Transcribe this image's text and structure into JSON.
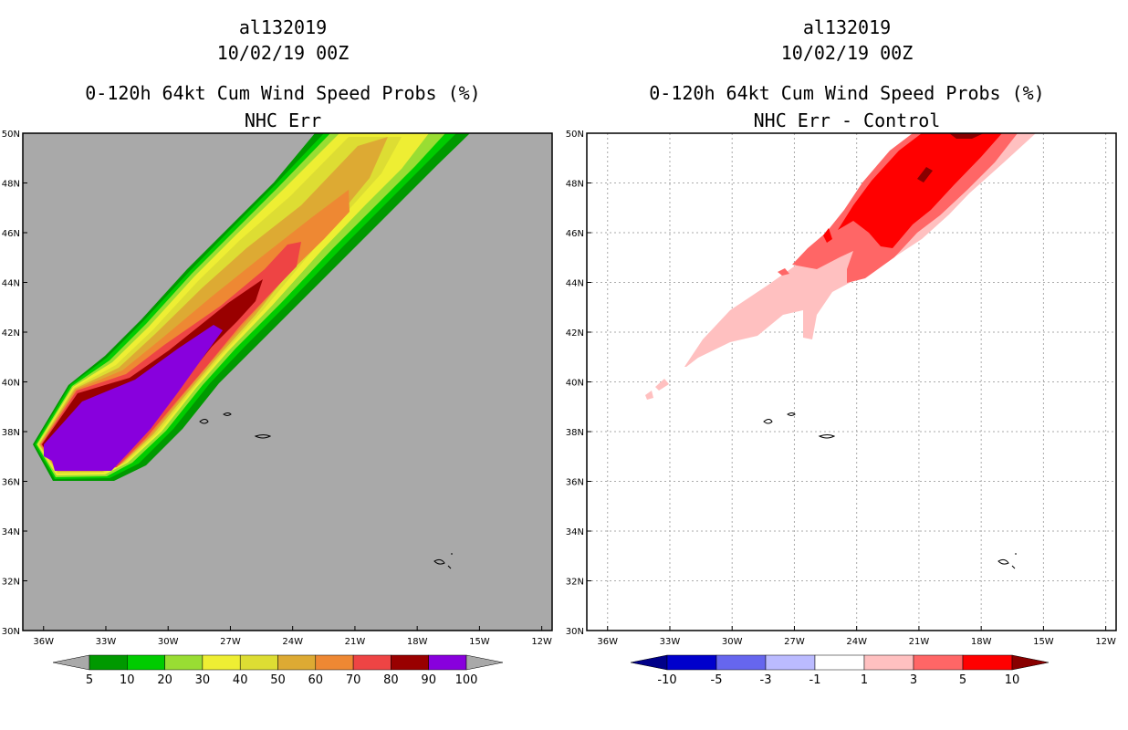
{
  "chart_data": [
    {
      "type": "heatmap",
      "storm_id": "al132019",
      "date": "10/02/19 00Z",
      "title": "0-120h 64kt Cum Wind Speed Probs (%)",
      "subtitle": "NHC Err",
      "x_ticks": [
        "36W",
        "33W",
        "30W",
        "27W",
        "24W",
        "21W",
        "18W",
        "15W",
        "12W"
      ],
      "y_ticks": [
        "50N",
        "48N",
        "46N",
        "44N",
        "42N",
        "40N",
        "38N",
        "36N",
        "34N",
        "32N",
        "30N"
      ],
      "xlim": [
        -37,
        -11.5
      ],
      "ylim": [
        30,
        50
      ],
      "grid": false,
      "background_color": "#a9a9a9",
      "colorbar": {
        "levels": [
          "5",
          "10",
          "20",
          "30",
          "40",
          "50",
          "60",
          "70",
          "80",
          "90",
          "100"
        ],
        "colors": [
          "#009900",
          "#00cc00",
          "#99dd33",
          "#eeee33",
          "#dddd33",
          "#ddaa33",
          "#ee8833",
          "#ee4444",
          "#990000",
          "#8800dd"
        ],
        "under_color": "#a9a9a9",
        "over_color": "#a9a9a9"
      }
    },
    {
      "type": "heatmap",
      "storm_id": "al132019",
      "date": "10/02/19 00Z",
      "title": "0-120h 64kt Cum Wind Speed Probs (%)",
      "subtitle": "NHC Err - Control",
      "x_ticks": [
        "36W",
        "33W",
        "30W",
        "27W",
        "24W",
        "21W",
        "18W",
        "15W",
        "12W"
      ],
      "y_ticks": [
        "50N",
        "48N",
        "46N",
        "44N",
        "42N",
        "40N",
        "38N",
        "36N",
        "34N",
        "32N",
        "30N"
      ],
      "xlim": [
        -37,
        -11.5
      ],
      "ylim": [
        30,
        50
      ],
      "grid": true,
      "background_color": "#ffffff",
      "colorbar": {
        "levels": [
          "-10",
          "-5",
          "-3",
          "-1",
          "1",
          "3",
          "5",
          "10"
        ],
        "colors": [
          "#0000cc",
          "#6666ee",
          "#bbbbff",
          "#ffffff",
          "#ffc0c0",
          "#ff6666",
          "#ff0000"
        ],
        "under_color": "#000088",
        "over_color": "#880000"
      }
    }
  ]
}
